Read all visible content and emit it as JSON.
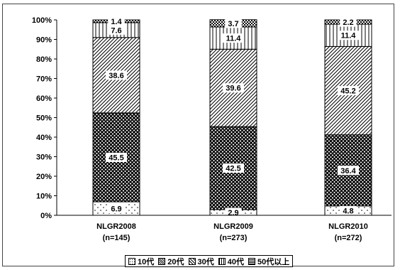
{
  "chart_data": {
    "type": "bar",
    "stacked": true,
    "percent": true,
    "categories": [
      "NLGR2008",
      "NLGR2009",
      "NLGR2010"
    ],
    "category_sublabels": [
      "(n=145)",
      "(n=273)",
      "(n=272)"
    ],
    "series": [
      {
        "name": "10代",
        "values": [
          6.9,
          2.9,
          4.8
        ],
        "label_text": [
          "6.9",
          "2.9",
          "4.8"
        ]
      },
      {
        "name": "20代",
        "values": [
          45.5,
          42.5,
          36.4
        ],
        "label_text": [
          "45.5",
          "42.5",
          "36.4"
        ]
      },
      {
        "name": "30代",
        "values": [
          38.6,
          39.6,
          45.2
        ],
        "label_text": [
          "38.6",
          "39.6",
          "45.2"
        ]
      },
      {
        "name": "40代",
        "values": [
          7.6,
          11.4,
          11.4
        ],
        "label_text": [
          "7.6",
          "11.4",
          "11.4"
        ]
      },
      {
        "name": "50代以上",
        "values": [
          1.4,
          3.7,
          2.2
        ],
        "label_text": [
          "1.4",
          "3.7",
          "2.2"
        ]
      }
    ],
    "yticks": [
      "0%",
      "10%",
      "20%",
      "30%",
      "40%",
      "50%",
      "60%",
      "70%",
      "80%",
      "90%",
      "100%"
    ],
    "ylim": [
      0,
      100
    ],
    "grid": false,
    "legend_position": "bottom",
    "title": "",
    "xlabel": "",
    "ylabel": ""
  }
}
